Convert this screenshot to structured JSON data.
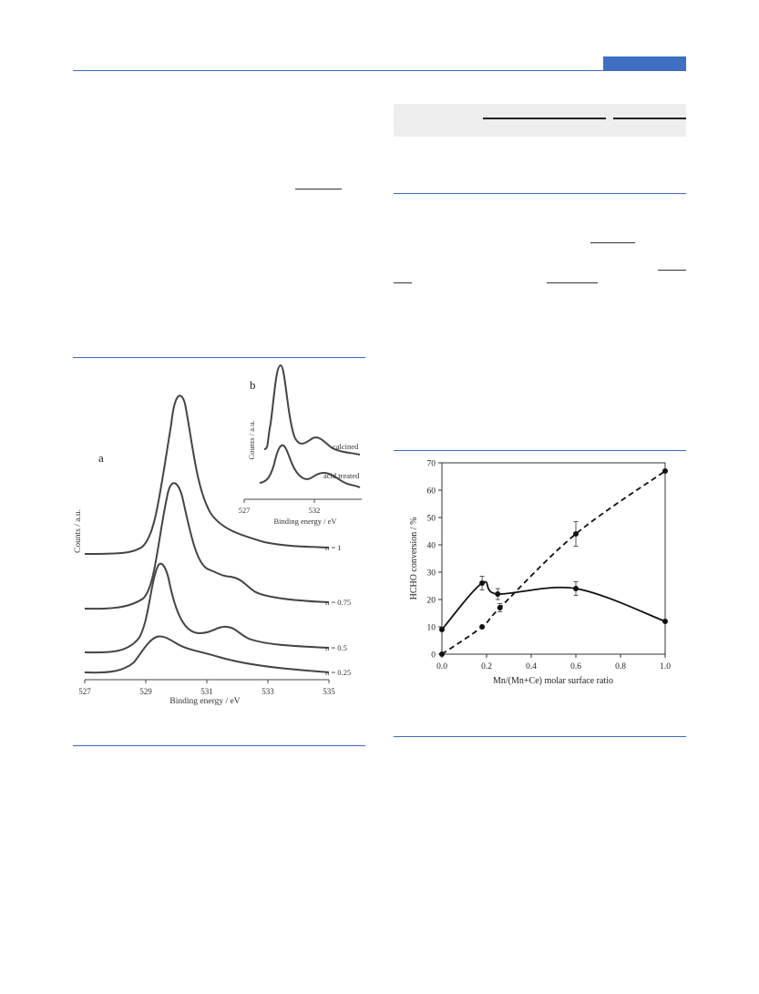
{
  "figure_a": {
    "panel_label_a": "a",
    "panel_label_b": "b",
    "ylabel": "Counts / a.u.",
    "xlabel": "Binding energy / eV",
    "x_ticks": [
      "527",
      "529",
      "531",
      "533",
      "535"
    ],
    "curve_labels": [
      "n = 1",
      "n = 0.75",
      "n = 0.5",
      "n = 0.25"
    ],
    "inset": {
      "ylabel": "Counts / a.u.",
      "xlabel": "Binding energy / eV",
      "x_ticks": [
        "527",
        "532"
      ],
      "curve_labels": [
        "calcined",
        "acid treated"
      ]
    }
  },
  "chart_data": {
    "type": "line",
    "xlabel": "Mn/(Mn+Ce) molar surface ratio",
    "ylabel": "HCHO conversion / %",
    "xlim": [
      0,
      1
    ],
    "ylim": [
      0,
      70
    ],
    "x_ticks": [
      "0.0",
      "0.2",
      "0.4",
      "0.6",
      "0.8",
      "1.0"
    ],
    "y_ticks": [
      "0",
      "10",
      "20",
      "30",
      "40",
      "50",
      "60",
      "70"
    ],
    "series": [
      {
        "style": "solid",
        "points": [
          [
            0.0,
            9
          ],
          [
            0.18,
            26
          ],
          [
            0.25,
            22
          ],
          [
            0.6,
            24
          ],
          [
            1.0,
            12
          ]
        ],
        "errors": [
          0,
          2.5,
          2,
          2.5,
          0
        ]
      },
      {
        "style": "dashed",
        "points": [
          [
            0.0,
            0
          ],
          [
            0.18,
            10
          ],
          [
            0.26,
            17
          ],
          [
            0.6,
            44
          ],
          [
            1.0,
            67
          ]
        ],
        "errors": [
          0,
          0,
          1.5,
          4.5,
          0
        ]
      }
    ]
  }
}
